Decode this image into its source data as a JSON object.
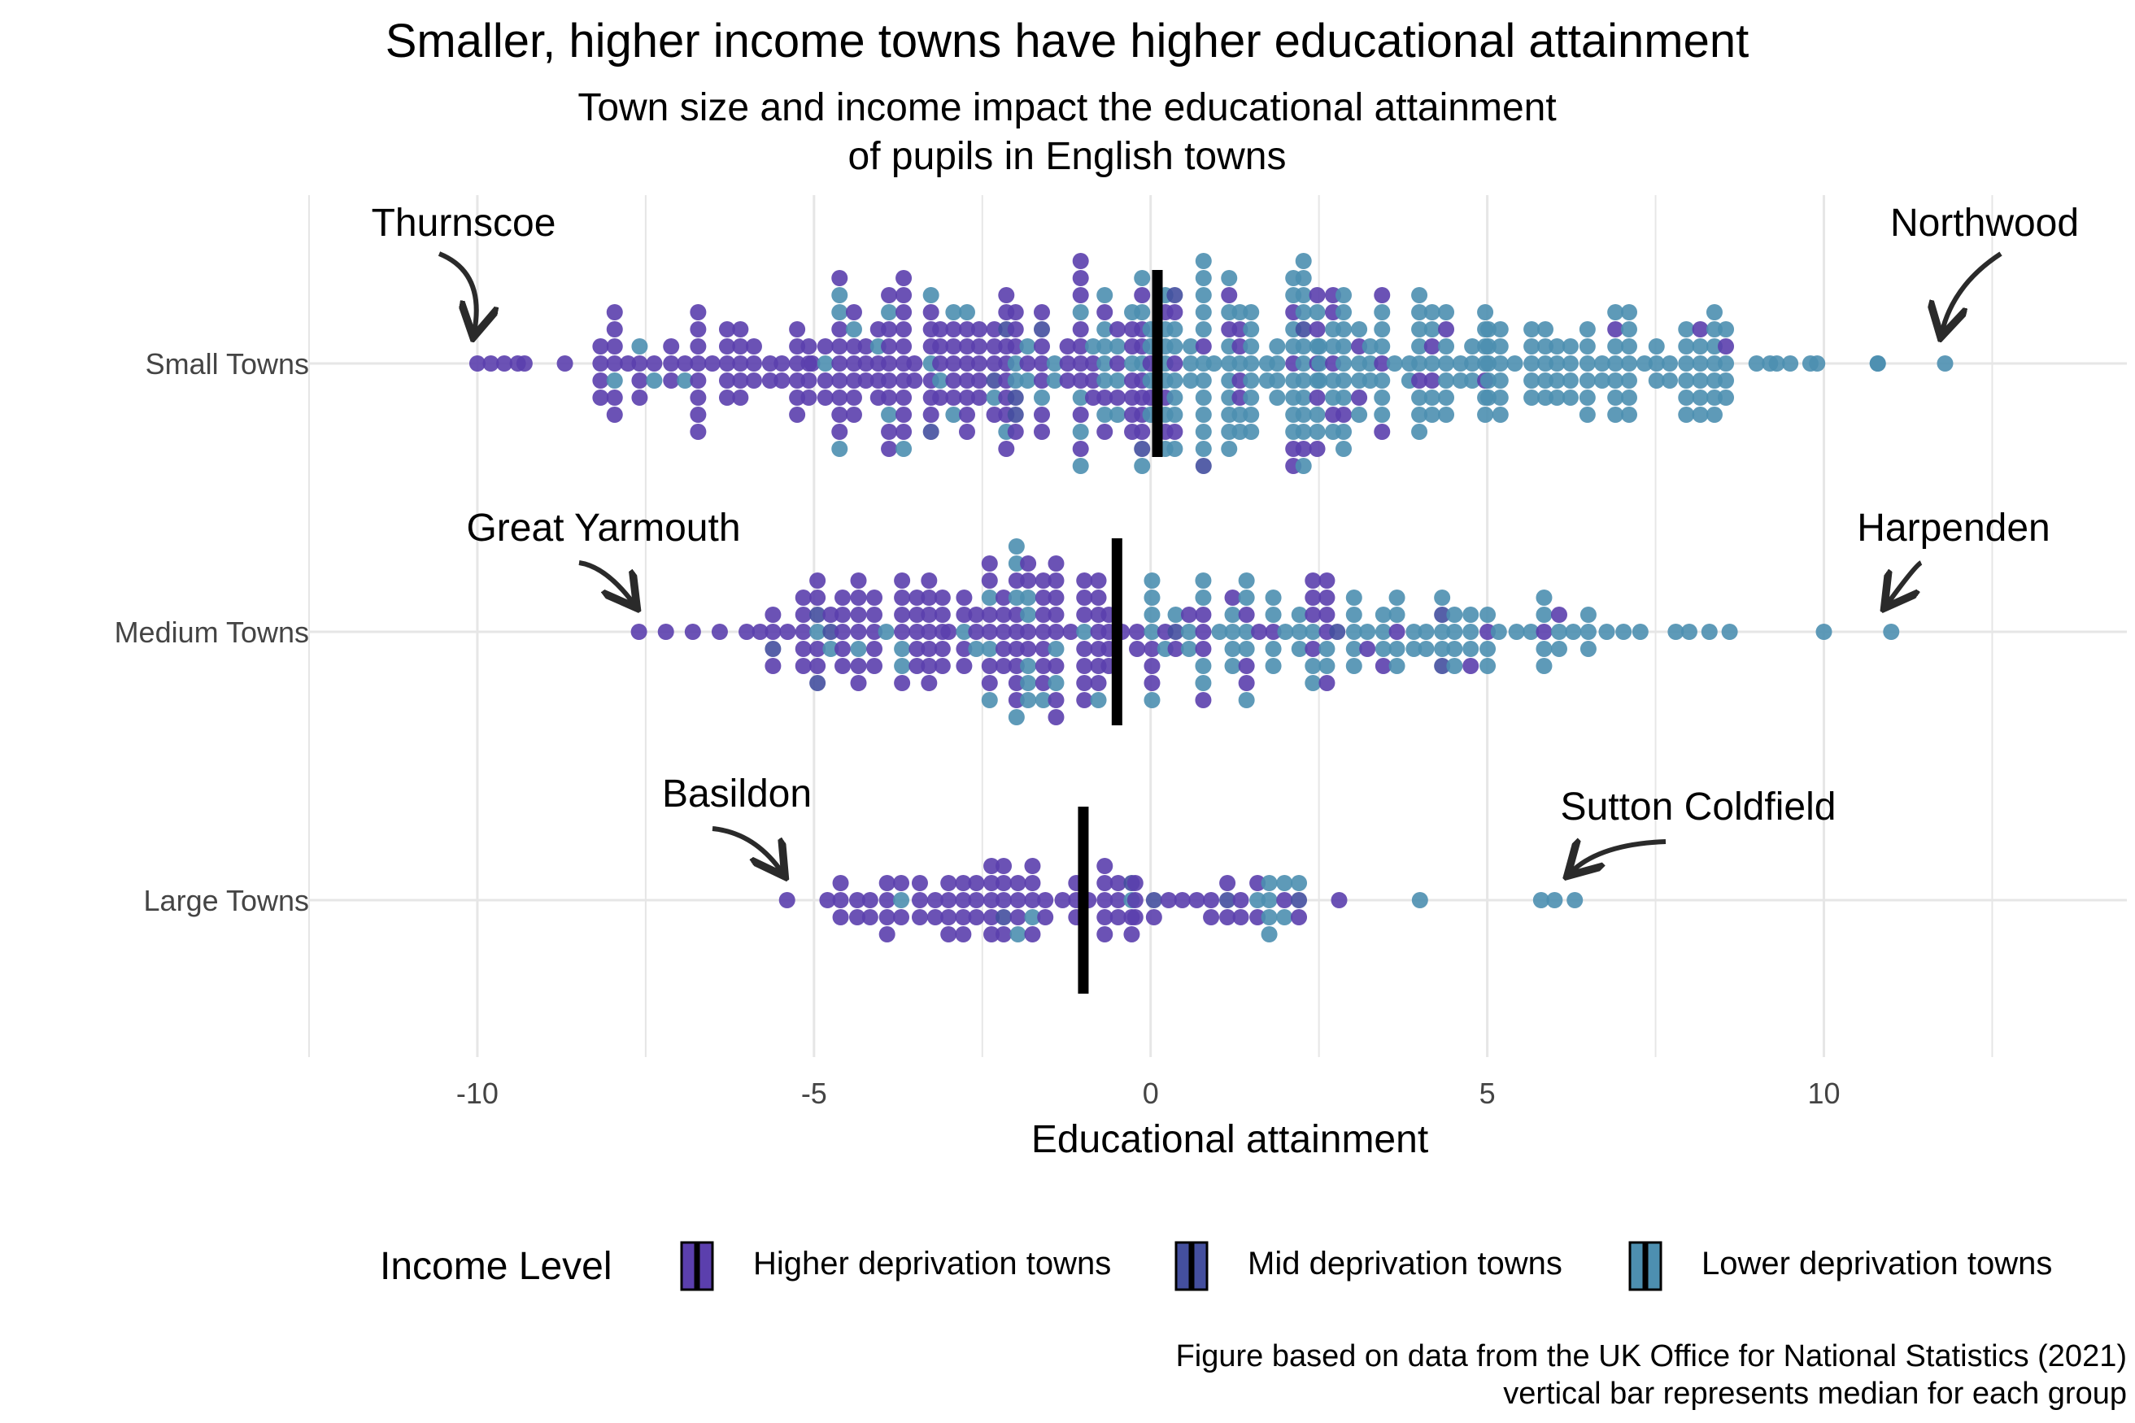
{
  "title": "Smaller, higher income towns have higher educational attainment",
  "subtitle_line1": "Town size and income impact the educational attainment",
  "subtitle_line2": "of pupils in English towns",
  "caption_line1": "Figure based on data from the UK Office for National Statistics (2021)",
  "caption_line2": "vertical bar represents median for each group",
  "colors": {
    "higher": "#5b3fad",
    "mid": "#444f9e",
    "lower": "#4d8fb0",
    "grid": "#e6e6e6",
    "median": "#000000",
    "arrow": "#2a2a2a"
  },
  "chart_data": {
    "type": "scatter",
    "subtype": "beeswarm",
    "xlabel": "Educational attainment",
    "xlim": [
      -12.5,
      14.5
    ],
    "xticks": [
      -10,
      -5,
      0,
      5,
      10
    ],
    "xtick_labels": [
      "-10",
      "-5",
      "0",
      "5",
      "10"
    ],
    "grid": true,
    "categories": [
      "Small Towns",
      "Medium Towns",
      "Large Towns"
    ],
    "medians": [
      0.1,
      -0.5,
      -1.0
    ],
    "legend": {
      "title": "Income Level",
      "position": "bottom",
      "items": [
        "Higher deprivation towns",
        "Mid deprivation towns",
        "Lower deprivation towns"
      ]
    },
    "annotations": [
      {
        "label": "Thurnscoe",
        "group": "Small Towns",
        "x": -10.0
      },
      {
        "label": "Northwood",
        "group": "Small Towns",
        "x": 11.8
      },
      {
        "label": "Great Yarmouth",
        "group": "Medium Towns",
        "x": -7.6
      },
      {
        "label": "Harpenden",
        "group": "Medium Towns",
        "x": 11.0
      },
      {
        "label": "Basildon",
        "group": "Large Towns",
        "x": -5.4
      },
      {
        "label": "Sutton Coldfield",
        "group": "Large Towns",
        "x": 6.3
      }
    ],
    "series": [
      {
        "group": "Small Towns",
        "points": [
          {
            "x": -10.0,
            "c": "higher"
          },
          {
            "x": -9.8,
            "c": "higher"
          },
          {
            "x": -9.6,
            "c": "higher"
          },
          {
            "x": -9.4,
            "c": "higher"
          },
          {
            "x": -9.3,
            "c": "higher"
          },
          {
            "x": -8.7,
            "c": "higher"
          },
          {
            "x": 10.8,
            "c": "lower"
          },
          {
            "x": 10.8,
            "c": "lower"
          },
          {
            "x": 11.8,
            "c": "lower"
          },
          {
            "x": 9.5,
            "c": "lower"
          },
          {
            "x": 9.3,
            "c": "lower"
          },
          {
            "x": 9.0,
            "c": "lower"
          },
          {
            "x": 9.2,
            "c": "lower"
          },
          {
            "x": 9.8,
            "c": "lower"
          },
          {
            "x": 9.9,
            "c": "lower"
          }
        ],
        "dense": [
          {
            "x0": -8.2,
            "x1": -5.0,
            "step": 0.21,
            "h": 0.5,
            "pHigher": 0.92,
            "pMid": 0.02
          },
          {
            "x0": -5.0,
            "x1": -2.0,
            "step": 0.19,
            "h": 0.82,
            "pHigher": 0.72,
            "pMid": 0.05
          },
          {
            "x0": -2.0,
            "x1": 0.0,
            "step": 0.19,
            "h": 1.0,
            "pHigher": 0.62,
            "pMid": 0.05
          },
          {
            "x0": 0.0,
            "x1": 2.5,
            "step": 0.19,
            "h": 1.0,
            "pHigher": 0.18,
            "pMid": 0.04
          },
          {
            "x0": 2.5,
            "x1": 5.0,
            "step": 0.19,
            "h": 0.78,
            "pHigher": 0.12,
            "pMid": 0.03
          },
          {
            "x0": 5.0,
            "x1": 8.6,
            "step": 0.21,
            "h": 0.5,
            "pHigher": 0.03,
            "pMid": 0.0
          }
        ]
      },
      {
        "group": "Medium Towns",
        "points": [
          {
            "x": -7.6,
            "c": "higher"
          },
          {
            "x": -7.2,
            "c": "higher"
          },
          {
            "x": -6.8,
            "c": "higher"
          },
          {
            "x": -6.4,
            "c": "higher"
          },
          {
            "x": -6.0,
            "c": "higher"
          },
          {
            "x": -5.8,
            "c": "higher"
          },
          {
            "x": 7.8,
            "c": "lower"
          },
          {
            "x": 8.0,
            "c": "lower"
          },
          {
            "x": 8.3,
            "c": "lower"
          },
          {
            "x": 8.6,
            "c": "lower"
          },
          {
            "x": 10.0,
            "c": "lower"
          },
          {
            "x": 11.0,
            "c": "lower"
          }
        ],
        "dense": [
          {
            "x0": -5.6,
            "x1": -3.0,
            "step": 0.21,
            "h": 0.5,
            "pHigher": 0.85,
            "pMid": 0.04
          },
          {
            "x0": -3.0,
            "x1": 0.0,
            "step": 0.2,
            "h": 0.75,
            "pHigher": 0.75,
            "pMid": 0.05
          },
          {
            "x0": 0.0,
            "x1": 3.0,
            "step": 0.2,
            "h": 0.52,
            "pHigher": 0.35,
            "pMid": 0.05
          },
          {
            "x0": 3.0,
            "x1": 6.5,
            "step": 0.22,
            "h": 0.3,
            "pHigher": 0.15,
            "pMid": 0.02
          },
          {
            "x0": 6.5,
            "x1": 7.4,
            "step": 0.25,
            "h": 0.12,
            "pHigher": 0.0,
            "pMid": 0.0
          }
        ]
      },
      {
        "group": "Large Towns",
        "points": [
          {
            "x": -5.4,
            "c": "higher"
          },
          {
            "x": -4.8,
            "c": "higher"
          },
          {
            "x": 2.8,
            "c": "higher"
          },
          {
            "x": 4.0,
            "c": "lower"
          },
          {
            "x": 5.8,
            "c": "lower"
          },
          {
            "x": 6.0,
            "c": "lower"
          },
          {
            "x": 6.3,
            "c": "lower"
          }
        ],
        "dense": [
          {
            "x0": -4.6,
            "x1": -2.8,
            "step": 0.23,
            "h": 0.22,
            "pHigher": 0.95,
            "pMid": 0.0
          },
          {
            "x0": -2.8,
            "x1": -0.2,
            "step": 0.21,
            "h": 0.32,
            "pHigher": 0.8,
            "pMid": 0.05
          },
          {
            "x0": -0.2,
            "x1": 2.3,
            "step": 0.22,
            "h": 0.18,
            "pHigher": 0.6,
            "pMid": 0.05
          }
        ]
      }
    ]
  }
}
